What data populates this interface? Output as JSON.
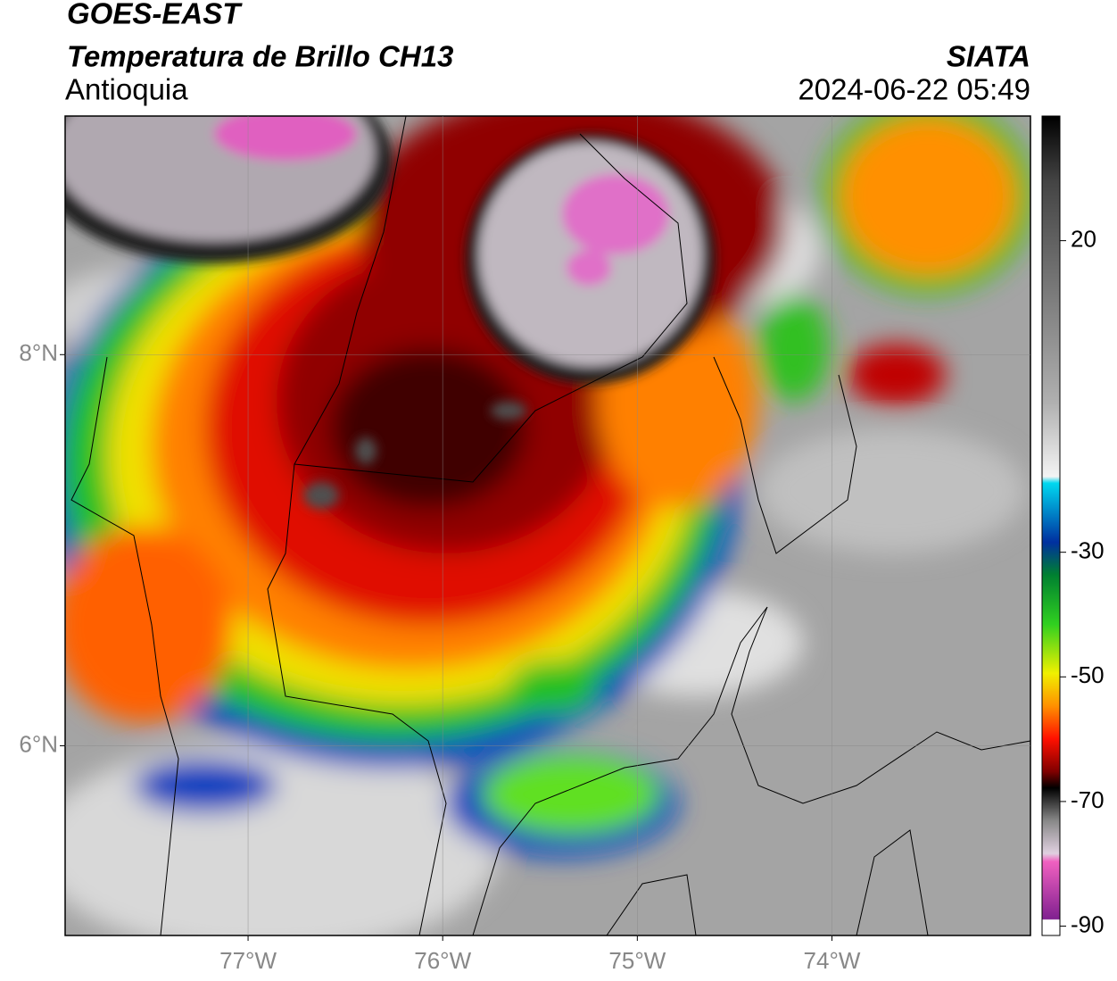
{
  "header": {
    "satellite": "GOES-EAST",
    "product": "Temperatura de Brillo CH13",
    "region": "Antioquia",
    "source": "SIATA",
    "datetime": "2024-06-22 05:49"
  },
  "map": {
    "xlim": [
      -77.94,
      -72.98
    ],
    "ylim": [
      5.03,
      9.22
    ],
    "xticks": [
      {
        "value": -77,
        "label": "77°W"
      },
      {
        "value": -76,
        "label": "76°W"
      },
      {
        "value": -75,
        "label": "75°W"
      },
      {
        "value": -74,
        "label": "74°W"
      }
    ],
    "yticks": [
      {
        "value": 6,
        "label": "6°N"
      },
      {
        "value": 8,
        "label": "8°N"
      }
    ],
    "grid": true
  },
  "colorbar": {
    "lim": [
      -91.5,
      40
    ],
    "ticks": [
      20,
      -30,
      -50,
      -70,
      -90
    ]
  }
}
